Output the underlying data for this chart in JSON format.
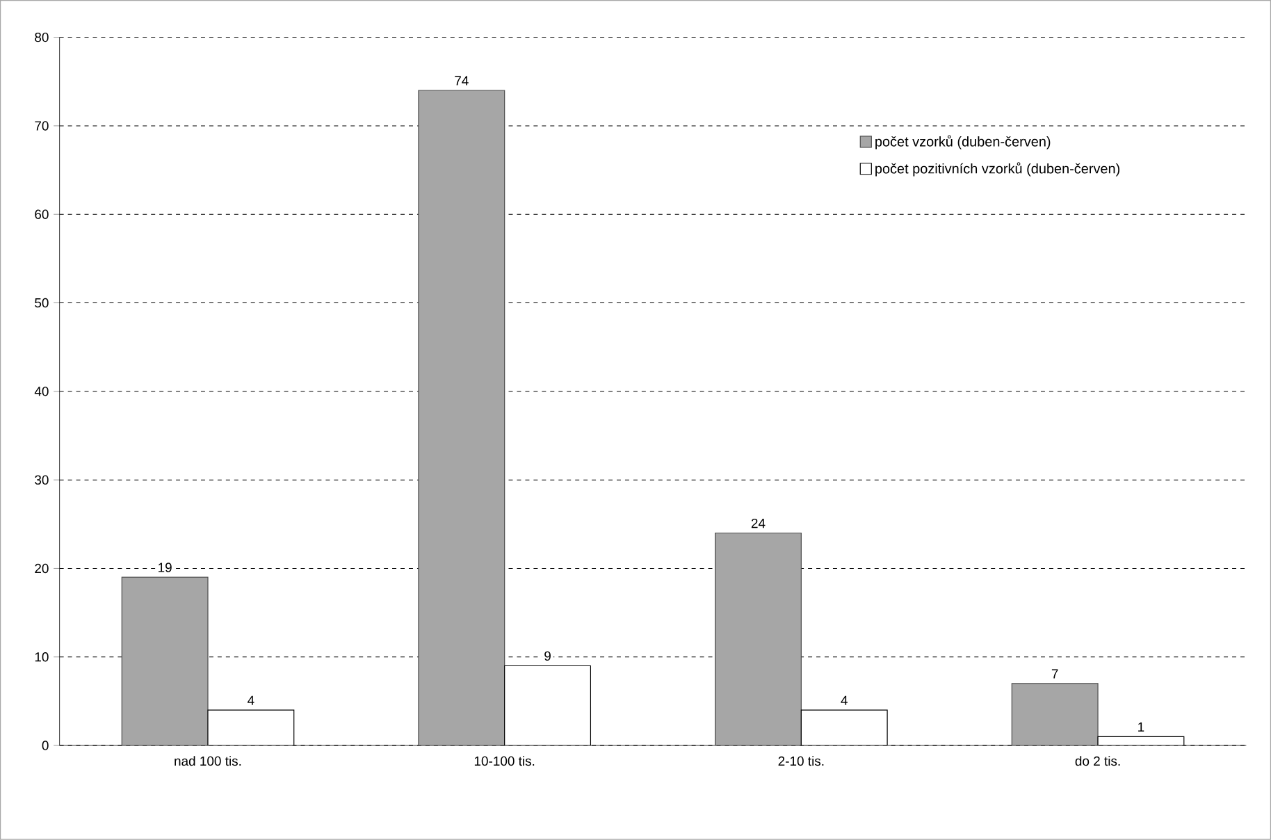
{
  "chart_data": {
    "type": "bar",
    "categories": [
      "nad 100 tis.",
      "10-100 tis.",
      "2-10 tis.",
      "do 2 tis."
    ],
    "series": [
      {
        "name": "počet vzorků (duben-červen)",
        "color": "#a6a6a6",
        "values": [
          19,
          74,
          24,
          7
        ]
      },
      {
        "name": "počet pozitivních vzorků (duben-červen)",
        "color": "#ffffff",
        "values": [
          4,
          9,
          4,
          1
        ]
      }
    ],
    "ylim": [
      0,
      80
    ],
    "yticks": [
      0,
      10,
      20,
      30,
      40,
      50,
      60,
      70,
      80
    ],
    "grid": "y",
    "legend": "top right",
    "data_labels": true
  }
}
